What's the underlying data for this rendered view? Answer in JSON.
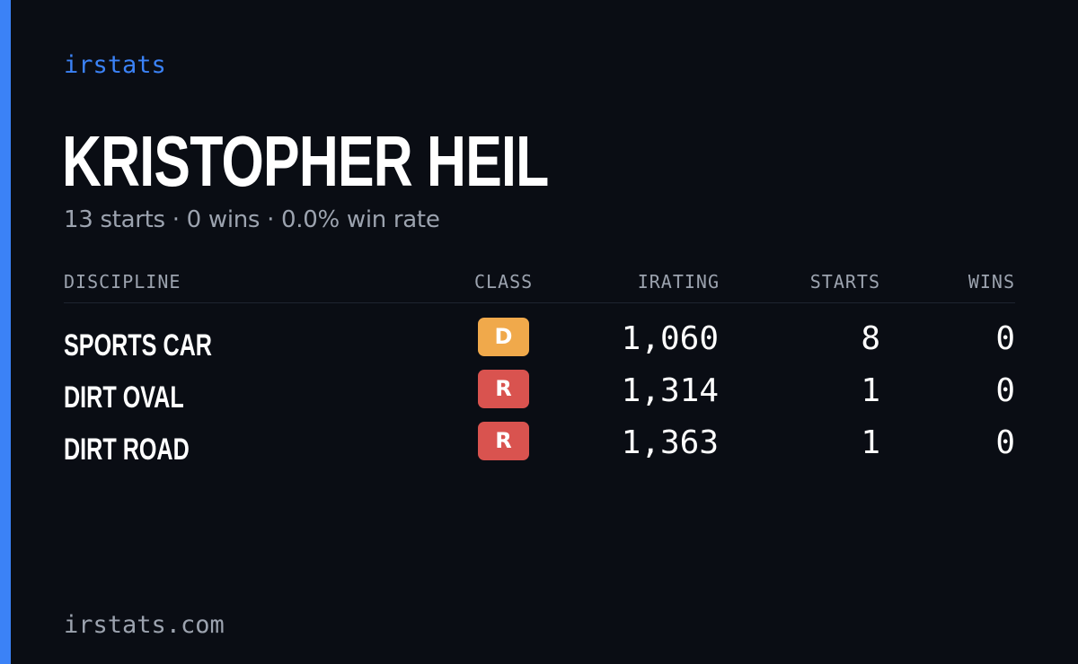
{
  "brand": "irstats",
  "driver": {
    "name": "KRISTOPHER HEIL",
    "summary": "13 starts · 0 wins · 0.0% win rate"
  },
  "table": {
    "headers": {
      "discipline": "DISCIPLINE",
      "class": "CLASS",
      "irating": "IRATING",
      "starts": "STARTS",
      "wins": "WINS"
    },
    "rows": [
      {
        "discipline": "SPORTS CAR",
        "class": "D",
        "class_color": "#f0a94b",
        "irating": "1,060",
        "starts": "8",
        "wins": "0"
      },
      {
        "discipline": "DIRT OVAL",
        "class": "R",
        "class_color": "#d9534f",
        "irating": "1,314",
        "starts": "1",
        "wins": "0"
      },
      {
        "discipline": "DIRT ROAD",
        "class": "R",
        "class_color": "#d9534f",
        "irating": "1,363",
        "starts": "1",
        "wins": "0"
      }
    ]
  },
  "footer": "irstats.com",
  "colors": {
    "accent": "#3b82f6",
    "background": "#0a0d14",
    "muted_text": "#9ca3af"
  }
}
